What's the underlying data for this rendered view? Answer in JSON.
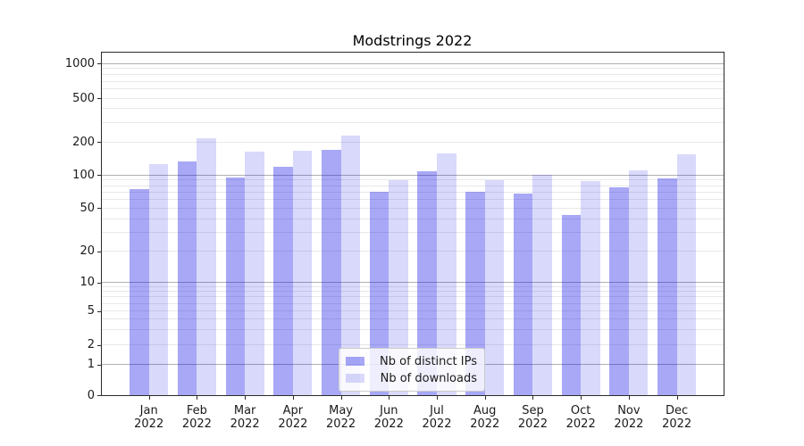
{
  "figure": {
    "background": "#ffffff"
  },
  "chart_data": {
    "type": "bar",
    "title": "Modstrings 2022",
    "categories": [
      {
        "month": "Jan",
        "year": "2022"
      },
      {
        "month": "Feb",
        "year": "2022"
      },
      {
        "month": "Mar",
        "year": "2022"
      },
      {
        "month": "Apr",
        "year": "2022"
      },
      {
        "month": "May",
        "year": "2022"
      },
      {
        "month": "Jun",
        "year": "2022"
      },
      {
        "month": "Jul",
        "year": "2022"
      },
      {
        "month": "Aug",
        "year": "2022"
      },
      {
        "month": "Sep",
        "year": "2022"
      },
      {
        "month": "Oct",
        "year": "2022"
      },
      {
        "month": "Nov",
        "year": "2022"
      },
      {
        "month": "Dec",
        "year": "2022"
      }
    ],
    "series": [
      {
        "name": "Nb of distinct IPs",
        "color": "rgba(0,0,230,0.34)",
        "color_hex_on_white": "#a8a8f6",
        "values": [
          74,
          133,
          94,
          119,
          170,
          70,
          107,
          70,
          68,
          43,
          77,
          92
        ]
      },
      {
        "name": "Nb of downloads",
        "color": "rgba(0,0,230,0.15)",
        "color_hex_on_white": "#dadafb",
        "values": [
          125,
          214,
          164,
          165,
          226,
          89,
          158,
          90,
          100,
          87,
          110,
          154
        ]
      }
    ],
    "yscale": "symlog",
    "yticks": [
      0,
      1,
      2,
      5,
      10,
      20,
      50,
      100,
      200,
      500,
      1000
    ],
    "ylim": [
      0,
      1350
    ],
    "grid": true,
    "grid_major_color": "#b0b0b0",
    "grid_minor_color": "#e8e8e8",
    "legend_position": "lower-center"
  }
}
